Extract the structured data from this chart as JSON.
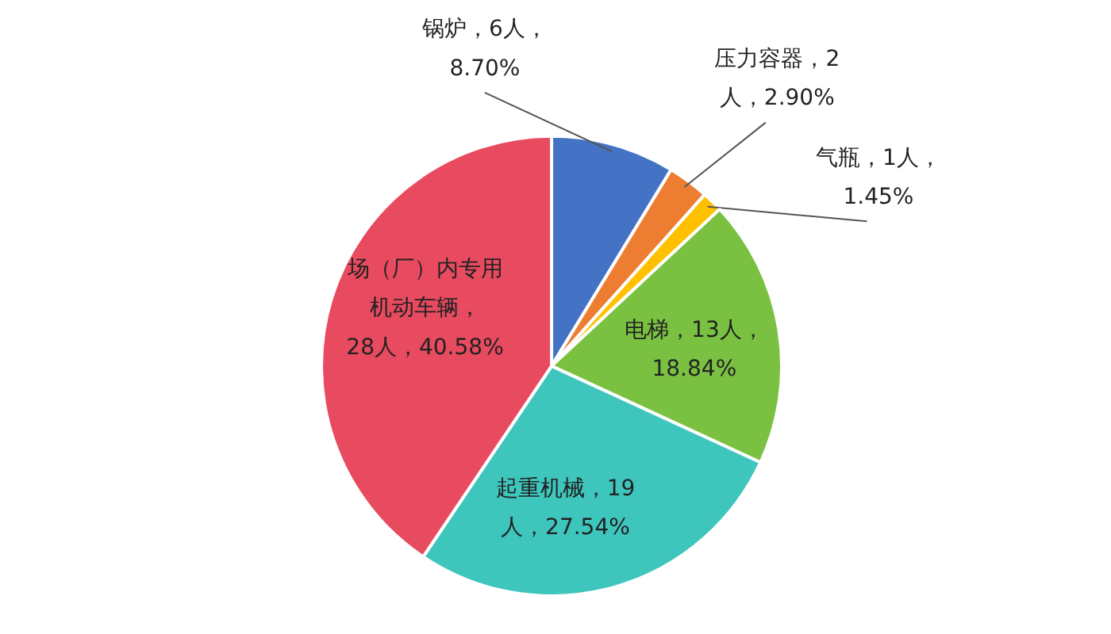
{
  "chart_data": {
    "type": "pie",
    "categories": [
      "锅炉",
      "压力容器",
      "气瓶",
      "电梯",
      "起重机械",
      "场（厂）内专用机动车辆"
    ],
    "values": [
      6,
      2,
      1,
      13,
      19,
      28
    ],
    "colors": [
      "#4472c4",
      "#ed7d31",
      "#ffc000",
      "#7ac142",
      "#3ec6bd",
      "#e84a5f"
    ],
    "value_labels": [
      "，6人，\n8.70%",
      "，2\n人，2.90%",
      "，1人，\n1.45%",
      "，13人，\n18.84%",
      "，19\n人，27.54%",
      "，\n28人，40.58%"
    ]
  }
}
